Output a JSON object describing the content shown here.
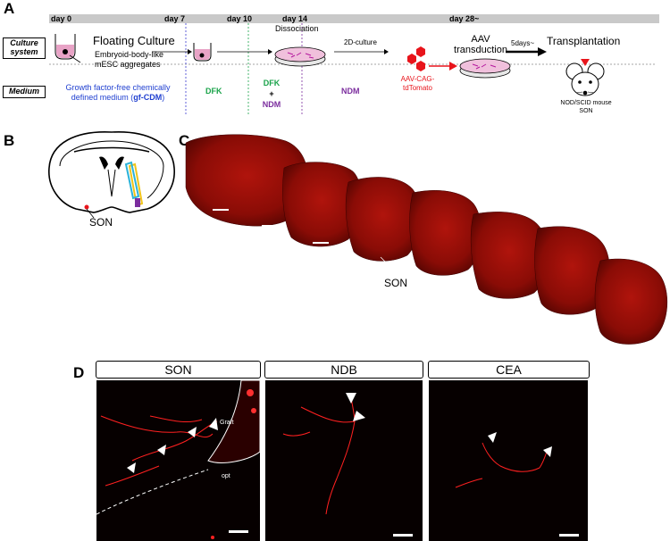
{
  "panelA": {
    "letter": "A",
    "days": [
      "day 0",
      "day 7",
      "day 10",
      "day 14",
      "day 28~"
    ],
    "culture_system_label": "Culture system",
    "medium_label": "Medium",
    "floating_culture": "Floating Culture",
    "aggregates_line1": "Embryoid-body-like",
    "aggregates_line2": "mESC aggregates",
    "gfcdm_line1": "Growth factor-free chemically",
    "gfcdm_line2_pre": "defined medium (",
    "gfcdm_bold": "gf-CDM",
    "gfcdm_line2_post": ")",
    "dfk": "DFK",
    "dfk2": "DFK",
    "plus": "+",
    "ndm2": "NDM",
    "dissociation": "Dissociation",
    "two_d_culture": "2D-culture",
    "ndm": "NDM",
    "aav_line1": "AAV",
    "aav_line2": "transduction",
    "aav_vector_line1": "AAV-CAG-",
    "aav_vector_line2": "tdTomato",
    "five_days": "5days~",
    "transplantation": "Transplantation",
    "mouse_line1": "NOD/SCID mouse",
    "mouse_line2": "SON",
    "colors": {
      "blue": "#1f3fd0",
      "green": "#1aa34a",
      "purple": "#7b2d9e",
      "red": "#e8141b"
    }
  },
  "panelB": {
    "letter": "B",
    "son_label": "SON"
  },
  "panelC": {
    "letter": "C",
    "son_label": "SON"
  },
  "panelD": {
    "letter": "D",
    "titles": [
      "SON",
      "NDB",
      "CEA"
    ],
    "graft_label": "Graft",
    "opt_label": "opt"
  }
}
